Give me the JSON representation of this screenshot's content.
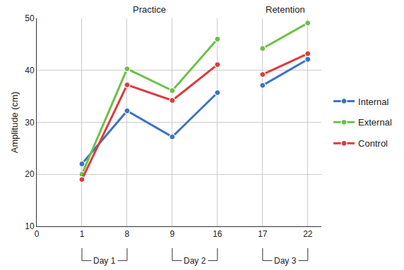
{
  "chart_data": {
    "type": "line",
    "y_label": "Amplitude (cm)",
    "categories": [
      "0",
      "1",
      "8",
      "9",
      "16",
      "17",
      "22"
    ],
    "series": [
      {
        "name": "Internal",
        "color": "#3b74c4",
        "values": [
          null,
          22,
          32.2,
          27.2,
          35.7,
          37.1,
          42.1
        ]
      },
      {
        "name": "External",
        "color": "#6cc04a",
        "values": [
          null,
          20,
          40.3,
          36.1,
          46,
          44.2,
          49.1
        ]
      },
      {
        "name": "Control",
        "color": "#e0393e",
        "values": [
          null,
          19,
          37.2,
          34.2,
          41.1,
          39.2,
          43.2
        ]
      }
    ],
    "ylim": [
      10,
      50
    ],
    "yticks": [
      10,
      20,
      30,
      40,
      50
    ],
    "grid": true,
    "legend": "right",
    "marker": "circle",
    "sections": [
      {
        "label": "Practice",
        "from": "1",
        "to": "16"
      },
      {
        "label": "Retention",
        "from": "17",
        "to": "22"
      }
    ],
    "groups": [
      {
        "label": "Day 1",
        "from": "1",
        "to": "8"
      },
      {
        "label": "Day 2",
        "from": "9",
        "to": "16"
      },
      {
        "label": "Day 3",
        "from": "17",
        "to": "22"
      }
    ]
  }
}
